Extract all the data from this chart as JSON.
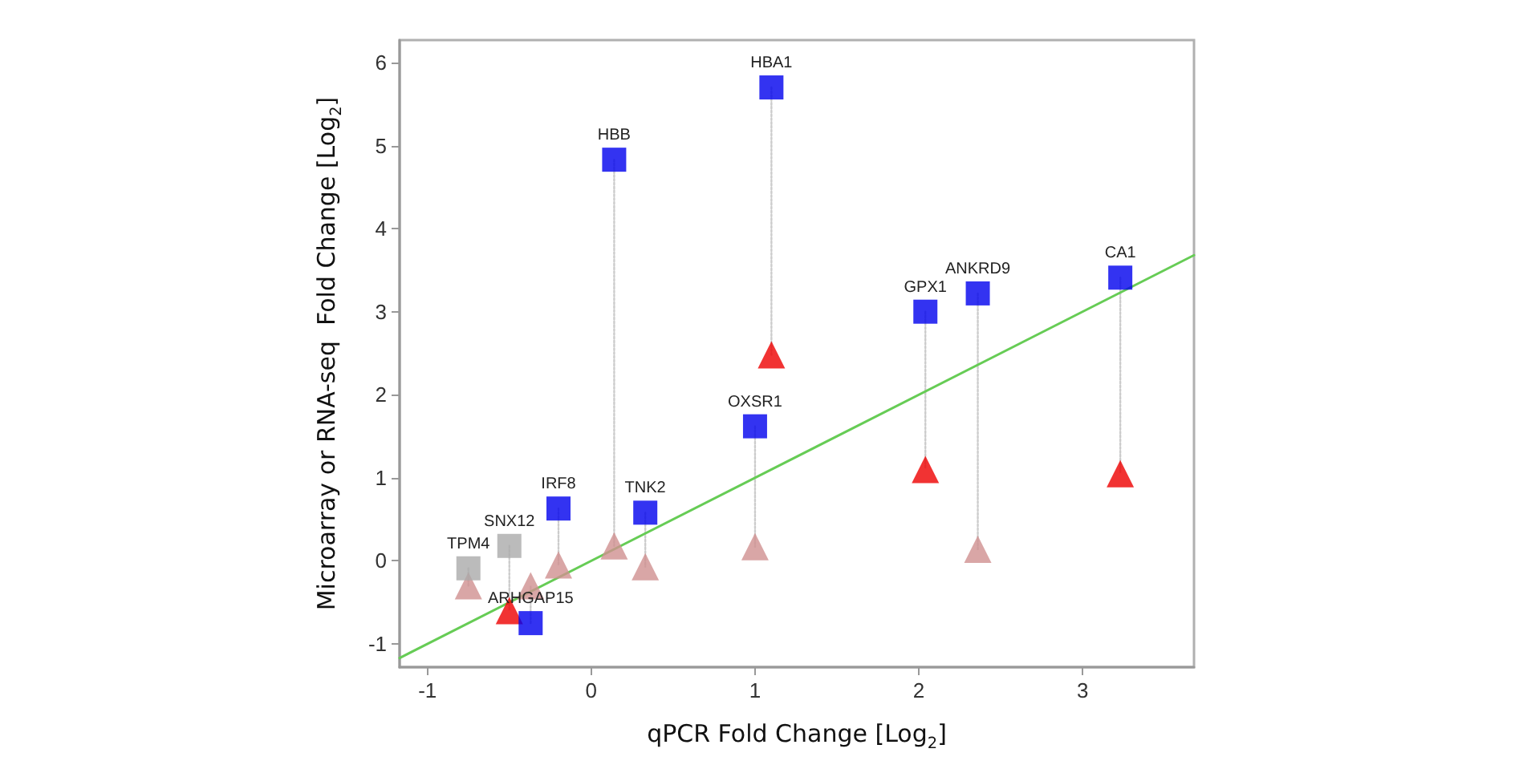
{
  "chart_data": {
    "type": "scatter",
    "xlabel": "qPCR Fold Change [Log$_{2}$]",
    "ylabel": "Microarray or RNA-seq  Fold Change [Log$_{2}$]",
    "xlim": [
      -1.17,
      3.68
    ],
    "ylim": [
      -1.28,
      6.27
    ],
    "xticks": [
      -1,
      0,
      1,
      2,
      3
    ],
    "yticks": [
      -1,
      0,
      1,
      2,
      3,
      4,
      5,
      6
    ],
    "grid": false,
    "series": [
      {
        "type": "line",
        "color": "#cccccc",
        "line_style": "dotted",
        "marker": "none",
        "x": [
          -0.75,
          -0.75
        ],
        "values": [
          -0.09,
          -0.3
        ]
      },
      {
        "type": "line",
        "color": "#cccccc",
        "line_style": "dotted",
        "marker": "none",
        "x": [
          -0.5,
          -0.5
        ],
        "values": [
          0.18,
          -0.6
        ]
      },
      {
        "type": "line",
        "color": "#cccccc",
        "line_style": "dotted",
        "marker": "none",
        "x": [
          -0.37,
          -0.37
        ],
        "values": [
          -0.75,
          -0.3
        ]
      },
      {
        "type": "line",
        "color": "#cccccc",
        "line_style": "dotted",
        "marker": "none",
        "x": [
          -0.2,
          -0.2
        ],
        "values": [
          0.63,
          -0.05
        ]
      },
      {
        "type": "line",
        "color": "#cccccc",
        "line_style": "dotted",
        "marker": "none",
        "x": [
          0.14,
          0.14
        ],
        "values": [
          4.83,
          0.18
        ]
      },
      {
        "type": "line",
        "color": "#cccccc",
        "line_style": "dotted",
        "marker": "none",
        "x": [
          0.33,
          0.33
        ],
        "values": [
          0.58,
          -0.07
        ]
      },
      {
        "type": "line",
        "color": "#cccccc",
        "line_style": "dotted",
        "marker": "none",
        "x": [
          1.0,
          1.0
        ],
        "values": [
          1.62,
          0.17
        ]
      },
      {
        "type": "line",
        "color": "#cccccc",
        "line_style": "dotted",
        "marker": "none",
        "x": [
          1.1,
          1.1
        ],
        "values": [
          5.7,
          2.48
        ]
      },
      {
        "type": "line",
        "color": "#cccccc",
        "line_style": "dotted",
        "marker": "none",
        "x": [
          2.04,
          2.04
        ],
        "values": [
          3.0,
          1.1
        ]
      },
      {
        "type": "line",
        "color": "#cccccc",
        "line_style": "dotted",
        "marker": "none",
        "x": [
          2.36,
          2.36
        ],
        "values": [
          3.22,
          0.14
        ]
      },
      {
        "type": "line",
        "color": "#cccccc",
        "line_style": "dotted",
        "marker": "none",
        "x": [
          3.23,
          3.23
        ],
        "values": [
          3.41,
          1.05
        ]
      },
      {
        "type": "line",
        "color": "#66cc55",
        "line_style": "solid",
        "marker": "none",
        "x": [
          -1.17,
          3.68
        ],
        "values": [
          -1.17,
          3.68
        ]
      },
      {
        "color": "#d09090",
        "marker": "triangle",
        "x": [
          -0.75,
          -0.37,
          -0.2,
          0.14,
          0.33,
          1.0,
          2.36
        ],
        "values": [
          -0.3,
          -0.3,
          -0.05,
          0.18,
          -0.07,
          0.17,
          0.14
        ]
      },
      {
        "color": "#ee0000",
        "marker": "triangle",
        "x": [
          -0.5,
          1.1,
          2.04,
          3.23
        ],
        "values": [
          -0.6,
          2.48,
          1.1,
          1.05
        ]
      },
      {
        "color": "#aaaaaa",
        "marker": "square",
        "x": [
          -0.75,
          -0.5
        ],
        "values": [
          -0.09,
          0.18
        ]
      },
      {
        "color": "#0000ee",
        "marker": "square",
        "x": [
          -0.37,
          -0.2,
          0.14,
          0.33,
          1.0,
          1.1,
          2.04,
          2.36,
          3.23
        ],
        "values": [
          -0.75,
          0.63,
          4.83,
          0.58,
          1.62,
          5.7,
          3.0,
          3.22,
          3.41
        ]
      }
    ],
    "annotations": [
      {
        "text": "TPM4",
        "x": -0.75,
        "y": -0.09
      },
      {
        "text": "SNX12",
        "x": -0.5,
        "y": 0.18
      },
      {
        "text": "ARHGAP15",
        "x": -0.37,
        "y": -0.75
      },
      {
        "text": "IRF8",
        "x": -0.2,
        "y": 0.63
      },
      {
        "text": "HBB",
        "x": 0.14,
        "y": 4.83
      },
      {
        "text": "TNK2",
        "x": 0.33,
        "y": 0.58
      },
      {
        "text": "OXSR1",
        "x": 1.0,
        "y": 1.62
      },
      {
        "text": "HBA1",
        "x": 1.1,
        "y": 5.7
      },
      {
        "text": "GPX1",
        "x": 2.04,
        "y": 3.0
      },
      {
        "text": "ANKRD9",
        "x": 2.36,
        "y": 3.22
      },
      {
        "text": "CA1",
        "x": 3.23,
        "y": 3.41
      }
    ]
  }
}
